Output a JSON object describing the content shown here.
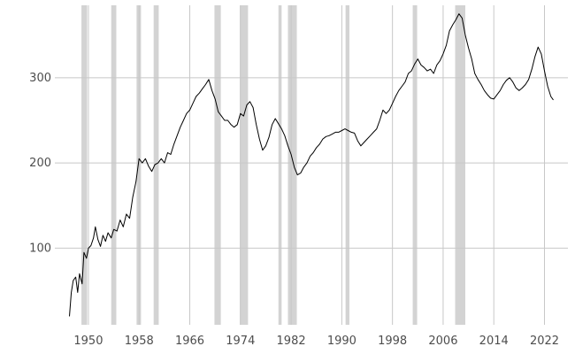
{
  "chart_data": {
    "type": "line",
    "title": "",
    "xlabel": "",
    "ylabel": "",
    "grid": true,
    "x_range": [
      1944.7,
      2025.7
    ],
    "ylim": [
      10,
      385
    ],
    "x_ticks": [
      1950,
      1958,
      1966,
      1974,
      1982,
      1990,
      1998,
      2006,
      2014,
      2022
    ],
    "x_tick_labels": [
      "1950",
      "1958",
      "1966",
      "1974",
      "1982",
      "1990",
      "1998",
      "2006",
      "2014",
      "2022"
    ],
    "y_ticks": [
      100,
      200,
      300
    ],
    "y_tick_labels": [
      "100",
      "200",
      "300"
    ],
    "shaded_periods": [
      [
        1948.9,
        1949.8
      ],
      [
        1953.6,
        1954.4
      ],
      [
        1957.6,
        1958.3
      ],
      [
        1960.3,
        1961.1
      ],
      [
        1969.9,
        1970.9
      ],
      [
        1973.9,
        1975.2
      ],
      [
        1980.0,
        1980.5
      ],
      [
        1981.5,
        1982.9
      ],
      [
        1990.6,
        1991.2
      ],
      [
        2001.2,
        2001.9
      ],
      [
        2007.9,
        2009.5
      ]
    ],
    "series": [
      {
        "color": "#000000",
        "points": [
          [
            1947.0,
            20
          ],
          [
            1947.3,
            48
          ],
          [
            1947.6,
            62
          ],
          [
            1948.0,
            66
          ],
          [
            1948.3,
            48
          ],
          [
            1948.6,
            70
          ],
          [
            1949.0,
            58
          ],
          [
            1949.3,
            95
          ],
          [
            1949.7,
            88
          ],
          [
            1950.0,
            100
          ],
          [
            1950.4,
            103
          ],
          [
            1950.8,
            112
          ],
          [
            1951.1,
            125
          ],
          [
            1951.5,
            110
          ],
          [
            1951.9,
            102
          ],
          [
            1952.3,
            115
          ],
          [
            1952.7,
            108
          ],
          [
            1953.1,
            118
          ],
          [
            1953.6,
            112
          ],
          [
            1954.0,
            122
          ],
          [
            1954.5,
            120
          ],
          [
            1955.0,
            133
          ],
          [
            1955.5,
            125
          ],
          [
            1956.0,
            140
          ],
          [
            1956.5,
            135
          ],
          [
            1957.0,
            160
          ],
          [
            1957.5,
            178
          ],
          [
            1958.0,
            205
          ],
          [
            1958.5,
            200
          ],
          [
            1959.0,
            205
          ],
          [
            1959.5,
            196
          ],
          [
            1960.0,
            190
          ],
          [
            1960.5,
            198
          ],
          [
            1961.0,
            200
          ],
          [
            1961.5,
            205
          ],
          [
            1962.0,
            200
          ],
          [
            1962.5,
            212
          ],
          [
            1963.0,
            210
          ],
          [
            1963.5,
            222
          ],
          [
            1964.0,
            232
          ],
          [
            1964.5,
            242
          ],
          [
            1965.0,
            250
          ],
          [
            1965.5,
            258
          ],
          [
            1966.0,
            262
          ],
          [
            1966.5,
            270
          ],
          [
            1967.0,
            278
          ],
          [
            1967.5,
            282
          ],
          [
            1968.0,
            287
          ],
          [
            1968.5,
            292
          ],
          [
            1969.0,
            298
          ],
          [
            1969.5,
            285
          ],
          [
            1970.0,
            275
          ],
          [
            1970.5,
            260
          ],
          [
            1971.0,
            255
          ],
          [
            1971.5,
            250
          ],
          [
            1972.0,
            250
          ],
          [
            1972.5,
            245
          ],
          [
            1973.0,
            242
          ],
          [
            1973.5,
            245
          ],
          [
            1974.0,
            258
          ],
          [
            1974.5,
            255
          ],
          [
            1975.0,
            268
          ],
          [
            1975.5,
            272
          ],
          [
            1976.0,
            265
          ],
          [
            1976.5,
            245
          ],
          [
            1977.0,
            228
          ],
          [
            1977.5,
            215
          ],
          [
            1978.0,
            220
          ],
          [
            1978.5,
            230
          ],
          [
            1979.0,
            245
          ],
          [
            1979.5,
            252
          ],
          [
            1980.0,
            246
          ],
          [
            1980.5,
            240
          ],
          [
            1981.0,
            232
          ],
          [
            1981.5,
            220
          ],
          [
            1982.0,
            210
          ],
          [
            1982.5,
            195
          ],
          [
            1983.0,
            186
          ],
          [
            1983.5,
            188
          ],
          [
            1984.0,
            195
          ],
          [
            1984.5,
            200
          ],
          [
            1985.0,
            208
          ],
          [
            1985.5,
            212
          ],
          [
            1986.0,
            218
          ],
          [
            1986.5,
            222
          ],
          [
            1987.0,
            228
          ],
          [
            1987.5,
            231
          ],
          [
            1988.0,
            232
          ],
          [
            1988.5,
            234
          ],
          [
            1989.0,
            236
          ],
          [
            1989.5,
            236
          ],
          [
            1990.0,
            238
          ],
          [
            1990.5,
            240
          ],
          [
            1991.0,
            238
          ],
          [
            1991.5,
            236
          ],
          [
            1992.0,
            235
          ],
          [
            1992.5,
            226
          ],
          [
            1993.0,
            220
          ],
          [
            1993.5,
            224
          ],
          [
            1994.0,
            228
          ],
          [
            1994.5,
            232
          ],
          [
            1995.0,
            236
          ],
          [
            1995.5,
            240
          ],
          [
            1996.0,
            250
          ],
          [
            1996.5,
            262
          ],
          [
            1997.0,
            258
          ],
          [
            1997.5,
            262
          ],
          [
            1998.0,
            270
          ],
          [
            1998.5,
            278
          ],
          [
            1999.0,
            285
          ],
          [
            1999.5,
            290
          ],
          [
            2000.0,
            295
          ],
          [
            2000.5,
            305
          ],
          [
            2001.0,
            308
          ],
          [
            2001.5,
            316
          ],
          [
            2002.0,
            322
          ],
          [
            2002.5,
            315
          ],
          [
            2003.0,
            312
          ],
          [
            2003.5,
            308
          ],
          [
            2004.0,
            310
          ],
          [
            2004.5,
            305
          ],
          [
            2005.0,
            315
          ],
          [
            2005.5,
            320
          ],
          [
            2006.0,
            328
          ],
          [
            2006.5,
            338
          ],
          [
            2007.0,
            355
          ],
          [
            2007.5,
            362
          ],
          [
            2008.0,
            368
          ],
          [
            2008.5,
            375
          ],
          [
            2009.0,
            370
          ],
          [
            2009.5,
            350
          ],
          [
            2010.0,
            335
          ],
          [
            2010.5,
            322
          ],
          [
            2011.0,
            305
          ],
          [
            2011.5,
            298
          ],
          [
            2012.0,
            292
          ],
          [
            2012.5,
            285
          ],
          [
            2013.0,
            280
          ],
          [
            2013.5,
            276
          ],
          [
            2014.0,
            275
          ],
          [
            2014.5,
            280
          ],
          [
            2015.0,
            285
          ],
          [
            2015.5,
            292
          ],
          [
            2016.0,
            297
          ],
          [
            2016.5,
            300
          ],
          [
            2017.0,
            295
          ],
          [
            2017.5,
            288
          ],
          [
            2018.0,
            285
          ],
          [
            2018.5,
            288
          ],
          [
            2019.0,
            292
          ],
          [
            2019.5,
            298
          ],
          [
            2020.0,
            310
          ],
          [
            2020.5,
            325
          ],
          [
            2021.0,
            336
          ],
          [
            2021.5,
            328
          ],
          [
            2022.0,
            308
          ],
          [
            2022.5,
            290
          ],
          [
            2023.0,
            278
          ],
          [
            2023.4,
            274
          ]
        ]
      }
    ]
  }
}
